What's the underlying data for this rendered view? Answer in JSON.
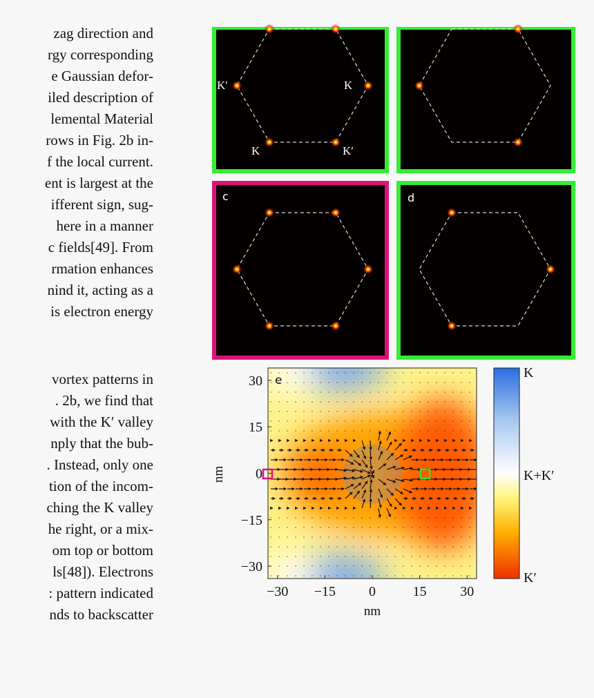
{
  "text_column": {
    "lines": [
      "zag direction and",
      "rgy corresponding",
      "e Gaussian defor-",
      "iled description of",
      "lemental Material",
      "rows in Fig. 2b in-",
      "f the local current.",
      "ent is largest at the",
      "ifferent sign, sug-",
      "here in a manner",
      "c fields[49]. From",
      "rmation enhances",
      "nind it, acting as a",
      "is electron energy",
      "vortex patterns in",
      ". 2b, we find that",
      "with the K′ valley",
      "nply that the bub-",
      ". Instead, only one",
      "tion of the incom-",
      "ching the K valley",
      "he right, or a mix-",
      "om top or bottom",
      "ls[48]). Electrons",
      ": pattern indicated",
      "nds to backscatter"
    ]
  },
  "figure": {
    "panel_a": {
      "labels": [
        "K′",
        "K",
        "K",
        "K′"
      ]
    },
    "panel_c": {
      "label": "c"
    },
    "panel_d": {
      "label": "d"
    },
    "panel_e": {
      "label": "e",
      "xlabel": "nm",
      "ylabel": "nm",
      "xlim": [
        -33,
        33
      ],
      "ylim": [
        -34,
        34
      ],
      "xticks": [
        {
          "value": -30,
          "label": "−30"
        },
        {
          "value": -15,
          "label": "−15"
        },
        0,
        15,
        30
      ],
      "yticks": [
        {
          "value": -30,
          "label": "−30"
        },
        {
          "value": -15,
          "label": "−15"
        },
        0,
        15,
        30
      ],
      "colorbar": {
        "labels": [
          "K",
          "K+K′",
          "K′"
        ]
      }
    }
  }
}
